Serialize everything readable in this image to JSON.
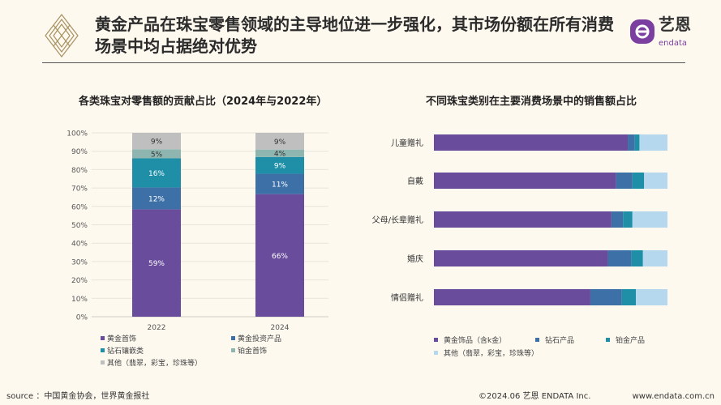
{
  "header": {
    "title": "黄金产品在珠宝零售领域的主导地位进一步强化，其市场份额在所有消费场景中均占据绝对优势",
    "brand_cn": "艺恩",
    "brand_en": "endata"
  },
  "colors": {
    "gold_jewelry": "#6a4c9c",
    "gold_investment": "#3e70a8",
    "diamond": "#1f8fa8",
    "platinum": "#8fb5b1",
    "other_left": "#bfbfbf",
    "other_right": "#b5d8ef"
  },
  "chart_data": [
    {
      "type": "bar",
      "stacked": true,
      "orientation": "vertical",
      "title": "各类珠宝对零售额的贡献占比（2024年与2022年）",
      "categories": [
        "2022",
        "2024"
      ],
      "ylim": [
        0,
        100
      ],
      "yticks": [
        "0%",
        "10%",
        "20%",
        "30%",
        "40%",
        "50%",
        "60%",
        "70%",
        "80%",
        "90%",
        "100%"
      ],
      "grid": true,
      "legend_position": "bottom",
      "series": [
        {
          "name": "黄金首饰",
          "values": [
            59,
            66
          ],
          "labels": [
            "59%",
            "66%"
          ]
        },
        {
          "name": "黄金投资产品",
          "values": [
            12,
            11
          ],
          "labels": [
            "12%",
            "11%"
          ]
        },
        {
          "name": "钻石镶嵌类",
          "values": [
            16,
            9
          ],
          "labels": [
            "16%",
            "9%"
          ]
        },
        {
          "name": "铂金首饰",
          "values": [
            5,
            4
          ],
          "labels": [
            "5%",
            "4%"
          ]
        },
        {
          "name": "其他（翡翠，彩宝，珍珠等）",
          "values": [
            9,
            9
          ],
          "labels": [
            "9%",
            "9%"
          ]
        }
      ]
    },
    {
      "type": "bar",
      "stacked": true,
      "orientation": "horizontal",
      "title": "不同珠宝类别在主要消费场景中的销售额占比",
      "categories": [
        "儿童赠礼",
        "自戴",
        "父母/长辈赠礼",
        "婚庆",
        "情侣赠礼"
      ],
      "xlim": [
        0,
        100
      ],
      "legend_position": "bottom",
      "series": [
        {
          "name": "黄金饰品（含k金）",
          "values": [
            83,
            78,
            76,
            74.5,
            67
          ]
        },
        {
          "name": "钻石产品",
          "values": [
            3,
            7,
            5,
            10,
            13.5
          ]
        },
        {
          "name": "铂金产品",
          "values": [
            2,
            5,
            4,
            5,
            6
          ]
        },
        {
          "name": "其他（翡翠，彩宝，珍珠等）",
          "values": [
            12,
            10,
            15,
            10.5,
            13.5
          ]
        }
      ]
    }
  ],
  "footer": {
    "source": "source ：中国黄金协会，世界黄金报社",
    "copyright": "©2024.06  艺恩 ENDATA Inc.",
    "url": "www.endata.com.cn"
  }
}
